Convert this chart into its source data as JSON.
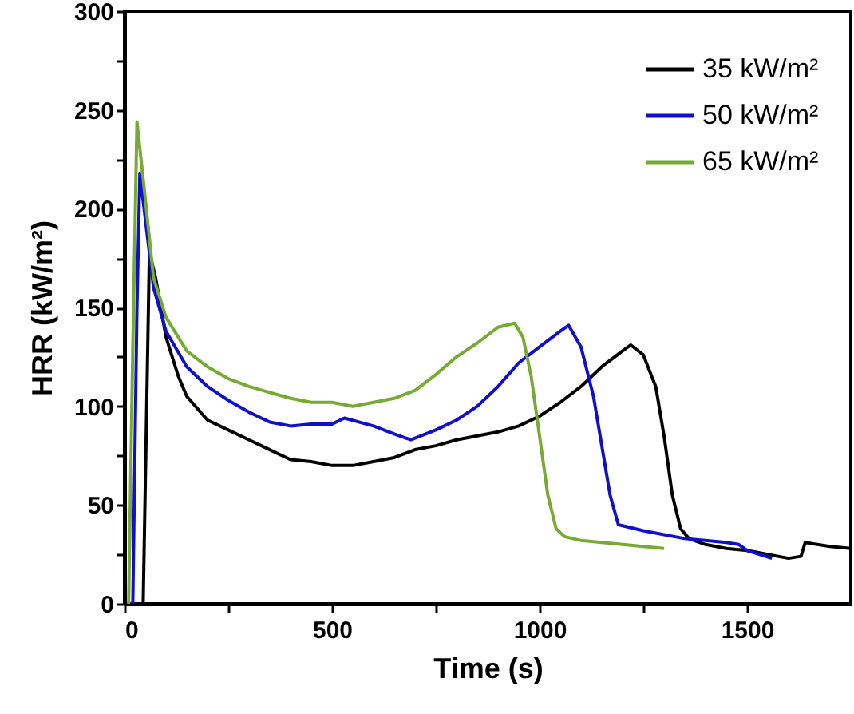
{
  "chart_data": {
    "type": "line",
    "xlabel": "Time (s)",
    "ylabel": "HRR (kW/m²)",
    "xlim": [
      0,
      1750
    ],
    "ylim": [
      0,
      300
    ],
    "xticks": [
      0,
      {
        "value": 250,
        "label": null
      },
      500,
      {
        "value": 750,
        "label": null
      },
      1000,
      {
        "value": 1250,
        "label": null
      },
      1500
    ],
    "yticks": [
      0,
      {
        "value": 25,
        "label": null
      },
      50,
      {
        "value": 75,
        "label": null
      },
      100,
      {
        "value": 125,
        "label": null
      },
      150,
      {
        "value": 175,
        "label": null
      },
      200,
      {
        "value": 225,
        "label": null
      },
      250,
      {
        "value": 275,
        "label": null
      },
      300
    ],
    "grid": false,
    "legend": "top right",
    "line_style": "solid",
    "series": [
      {
        "name": "35 kW/m²",
        "color": "#000000",
        "x": [
          30,
          45,
          60,
          75,
          100,
          130,
          150,
          200,
          250,
          300,
          350,
          400,
          450,
          500,
          550,
          600,
          650,
          700,
          750,
          800,
          850,
          900,
          950,
          1000,
          1050,
          1100,
          1150,
          1200,
          1220,
          1250,
          1280,
          1300,
          1320,
          1340,
          1360,
          1400,
          1450,
          1500,
          1550,
          1600,
          1630,
          1640,
          1700,
          1750
        ],
        "values": [
          0,
          0,
          178,
          165,
          135,
          115,
          105,
          93,
          88,
          83,
          78,
          73,
          72,
          70,
          70,
          72,
          74,
          78,
          80,
          83,
          85,
          87,
          90,
          95,
          102,
          110,
          120,
          128,
          131,
          126,
          110,
          85,
          55,
          38,
          33,
          30,
          28,
          27,
          25,
          23,
          24,
          31,
          29,
          28
        ]
      },
      {
        "name": "50 kW/m²",
        "color": "#1010cc",
        "x": [
          20,
          30,
          37,
          50,
          70,
          100,
          150,
          200,
          250,
          300,
          350,
          400,
          450,
          500,
          530,
          600,
          650,
          690,
          750,
          800,
          850,
          900,
          950,
          1000,
          1050,
          1070,
          1100,
          1130,
          1150,
          1170,
          1190,
          1250,
          1300,
          1350,
          1400,
          1450,
          1480,
          1500,
          1560
        ],
        "values": [
          0,
          150,
          218,
          195,
          160,
          138,
          120,
          110,
          103,
          97,
          92,
          90,
          91,
          91,
          94,
          90,
          86,
          83,
          88,
          93,
          100,
          110,
          122,
          130,
          138,
          141,
          130,
          105,
          80,
          55,
          40,
          37,
          35,
          33,
          32,
          31,
          30,
          27,
          23
        ]
      },
      {
        "name": "65 kW/m²",
        "color": "#77aa33",
        "x": [
          10,
          20,
          30,
          45,
          70,
          100,
          150,
          200,
          250,
          300,
          350,
          400,
          450,
          500,
          550,
          600,
          650,
          700,
          750,
          800,
          850,
          900,
          940,
          960,
          980,
          1000,
          1020,
          1040,
          1060,
          1100,
          1150,
          1200,
          1250,
          1300
        ],
        "values": [
          0,
          130,
          244,
          215,
          165,
          145,
          128,
          120,
          114,
          110,
          107,
          104,
          102,
          102,
          100,
          102,
          104,
          108,
          116,
          125,
          132,
          140,
          142,
          135,
          115,
          85,
          55,
          38,
          34,
          32,
          31,
          30,
          29,
          28
        ]
      }
    ]
  }
}
